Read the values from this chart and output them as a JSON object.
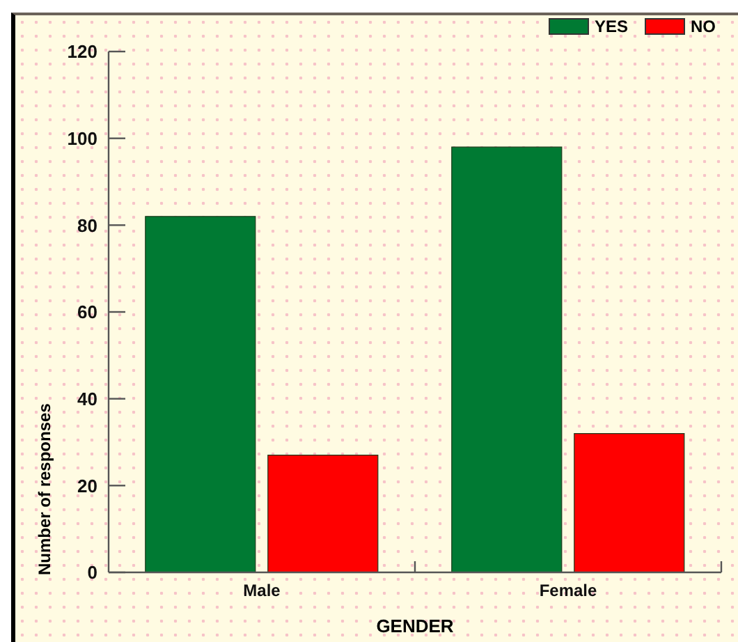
{
  "chart_data": {
    "type": "bar",
    "categories": [
      "Male",
      "Female"
    ],
    "series": [
      {
        "name": "YES",
        "color": "#007a33",
        "values": [
          82,
          98
        ]
      },
      {
        "name": "NO",
        "color": "#ff0000",
        "values": [
          27,
          32
        ]
      }
    ],
    "xlabel": "GENDER",
    "ylabel": "Number of responses",
    "ylim": [
      0,
      120
    ],
    "yticks": [
      0,
      20,
      40,
      60,
      80,
      100,
      120
    ],
    "legend": "top right"
  }
}
